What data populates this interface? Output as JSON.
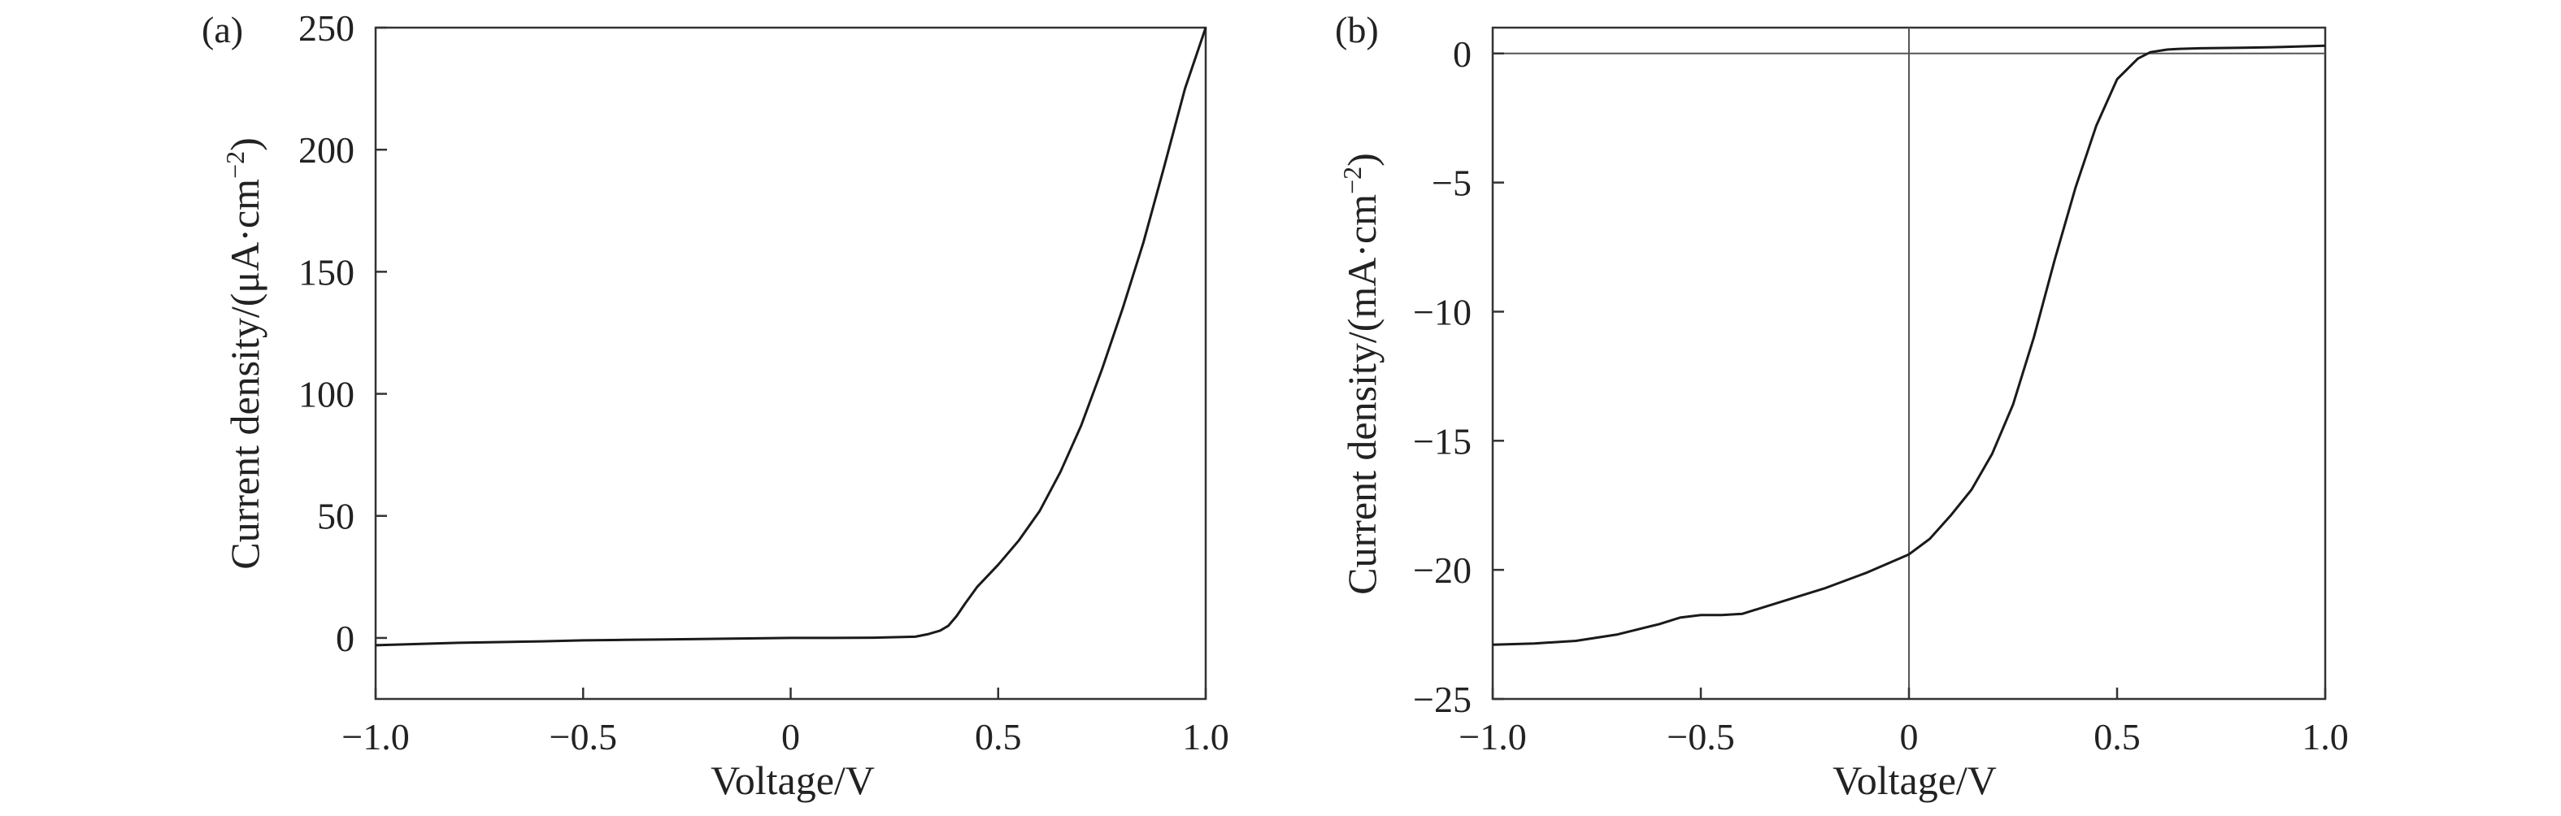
{
  "chart_data": [
    {
      "type": "line",
      "panel_label": "(a)",
      "xlabel": "Voltage/V",
      "ylabel_main": "Current density/(μA·cm",
      "ylabel_sup": "−2",
      "ylabel_close": ")",
      "xlim": [
        -1.0,
        1.0
      ],
      "ylim": [
        -25,
        250
      ],
      "x_ticks": [
        -1.0,
        -0.5,
        0,
        0.5,
        1.0
      ],
      "x_tick_labels": [
        "−1.0",
        "−0.5",
        "0",
        "0.5",
        "1.0"
      ],
      "y_ticks": [
        0,
        50,
        100,
        150,
        200,
        250
      ],
      "y_tick_labels": [
        "0",
        "50",
        "100",
        "150",
        "200",
        "250"
      ],
      "grid": false,
      "series": [
        {
          "x": [
            -1.0,
            -0.9,
            -0.8,
            -0.7,
            -0.6,
            -0.5,
            -0.4,
            -0.3,
            -0.2,
            -0.1,
            0.0,
            0.1,
            0.2,
            0.3,
            0.33,
            0.36,
            0.38,
            0.4,
            0.42,
            0.45,
            0.5,
            0.55,
            0.6,
            0.65,
            0.7,
            0.75,
            0.8,
            0.85,
            0.9,
            0.95,
            1.0
          ],
          "y": [
            -3.0,
            -2.5,
            -2.0,
            -1.7,
            -1.4,
            -1.0,
            -0.8,
            -0.6,
            -0.4,
            -0.2,
            0.0,
            0.0,
            0.1,
            0.5,
            1.5,
            3.0,
            5.0,
            9.0,
            14.0,
            21.0,
            30.0,
            40.0,
            52.0,
            68.0,
            87.0,
            110.0,
            135.0,
            162.0,
            193.0,
            225.0,
            250.0
          ]
        }
      ]
    },
    {
      "type": "line",
      "panel_label": "(b)",
      "xlabel": "Voltage/V",
      "ylabel_main": "Current density/(mA·cm",
      "ylabel_sup": "−2",
      "ylabel_close": ")",
      "xlim": [
        -1.0,
        1.0
      ],
      "ylim": [
        -25,
        1
      ],
      "x_ticks": [
        -1.0,
        -0.5,
        0,
        0.5,
        1.0
      ],
      "x_tick_labels": [
        "−1.0",
        "−0.5",
        "0",
        "0.5",
        "1.0"
      ],
      "y_ticks": [
        0,
        -5,
        -10,
        -15,
        -20,
        -25
      ],
      "y_tick_labels": [
        "0",
        "−5",
        "−10",
        "−15",
        "−20",
        "−25"
      ],
      "reference_lines": {
        "horizontal_at": 0,
        "vertical_at": 0
      },
      "grid": false,
      "series": [
        {
          "x": [
            -1.0,
            -0.9,
            -0.8,
            -0.7,
            -0.6,
            -0.55,
            -0.5,
            -0.45,
            -0.4,
            -0.3,
            -0.2,
            -0.1,
            0.0,
            0.05,
            0.1,
            0.15,
            0.2,
            0.25,
            0.3,
            0.35,
            0.4,
            0.45,
            0.5,
            0.55,
            0.58,
            0.62,
            0.65,
            0.7,
            0.8,
            0.9,
            1.0
          ],
          "y": [
            -22.9,
            -22.85,
            -22.75,
            -22.5,
            -22.1,
            -21.85,
            -21.75,
            -21.75,
            -21.7,
            -21.2,
            -20.7,
            -20.1,
            -19.4,
            -18.8,
            -17.9,
            -16.9,
            -15.5,
            -13.6,
            -11.0,
            -8.0,
            -5.2,
            -2.8,
            -1.0,
            -0.2,
            0.05,
            0.15,
            0.18,
            0.2,
            0.22,
            0.25,
            0.3
          ]
        }
      ]
    }
  ]
}
